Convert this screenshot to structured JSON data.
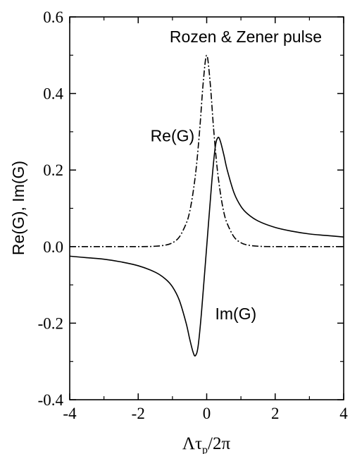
{
  "chart_data": {
    "type": "line",
    "title": "Rozen & Zener pulse",
    "xlabel": "Λτ",
    "xlabel_sub": "p",
    "xlabel_tail": "/2π",
    "ylabel": "Re(G), Im(G)",
    "xlim": [
      -4,
      4
    ],
    "ylim": [
      -0.4,
      0.6
    ],
    "x_ticks": [
      -4,
      -2,
      0,
      2,
      4
    ],
    "x_tick_labels": [
      "-4",
      "-2",
      "0",
      "2",
      "4"
    ],
    "y_ticks": [
      -0.4,
      -0.2,
      0.0,
      0.2,
      0.4,
      0.6
    ],
    "y_tick_labels": [
      "-0.4",
      "-0.2",
      "0.0",
      "0.2",
      "0.4",
      "0.6"
    ],
    "grid": false,
    "series": [
      {
        "name": "Re(G)",
        "style": "dash-dot",
        "x": [
          -4,
          -2,
          -1.5,
          -1.2,
          -1.0,
          -0.8,
          -0.6,
          -0.5,
          -0.4,
          -0.3,
          -0.2,
          -0.1,
          0,
          0.1,
          0.2,
          0.3,
          0.4,
          0.5,
          0.6,
          0.8,
          1.0,
          1.2,
          1.5,
          2,
          4
        ],
        "y": [
          0,
          0,
          0.001,
          0.004,
          0.01,
          0.025,
          0.06,
          0.09,
          0.14,
          0.21,
          0.31,
          0.43,
          0.5,
          0.43,
          0.31,
          0.21,
          0.14,
          0.09,
          0.06,
          0.025,
          0.01,
          0.004,
          0.001,
          0,
          0
        ]
      },
      {
        "name": "Im(G)",
        "style": "solid",
        "x": [
          -4,
          -3.5,
          -3,
          -2.5,
          -2,
          -1.5,
          -1.2,
          -1.0,
          -0.8,
          -0.6,
          -0.5,
          -0.4,
          -0.33,
          -0.25,
          -0.15,
          0,
          0.15,
          0.25,
          0.33,
          0.4,
          0.5,
          0.6,
          0.8,
          1.0,
          1.2,
          1.5,
          2,
          2.5,
          3,
          3.5,
          4
        ],
        "y": [
          -0.025,
          -0.029,
          -0.033,
          -0.04,
          -0.05,
          -0.067,
          -0.085,
          -0.105,
          -0.14,
          -0.2,
          -0.24,
          -0.275,
          -0.285,
          -0.26,
          -0.17,
          0,
          0.17,
          0.26,
          0.285,
          0.275,
          0.24,
          0.2,
          0.14,
          0.105,
          0.085,
          0.067,
          0.05,
          0.04,
          0.033,
          0.029,
          0.025
        ]
      }
    ],
    "annotations": [
      {
        "text": "Re(G)",
        "x": -1.0,
        "y": 0.275
      },
      {
        "text": "Im(G)",
        "x": 0.85,
        "y": -0.19
      }
    ]
  }
}
